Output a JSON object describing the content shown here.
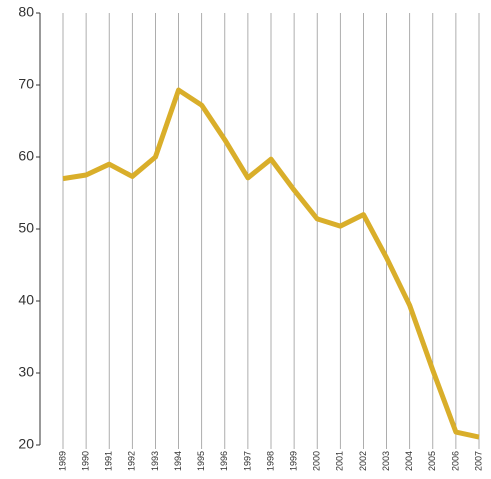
{
  "chart_data": {
    "type": "line",
    "categories": [
      "1989",
      "1990",
      "1991",
      "1992",
      "1993",
      "1994",
      "1995",
      "1996",
      "1997",
      "1998",
      "1999",
      "2000",
      "2001",
      "2002",
      "2003",
      "2004",
      "2005",
      "2006",
      "2007"
    ],
    "series": [
      {
        "color": "#d9ae2a",
        "values": [
          57,
          57.5,
          59,
          57.3,
          60,
          69.3,
          67.2,
          62.4,
          57.1,
          59.7,
          55.4,
          51.4,
          50.4,
          52,
          46,
          39.4,
          30.4,
          21.8,
          21.1
        ]
      }
    ],
    "ylim": [
      20,
      80
    ],
    "yticks": [
      20,
      30,
      40,
      50,
      60,
      70,
      80
    ],
    "grid": true
  }
}
